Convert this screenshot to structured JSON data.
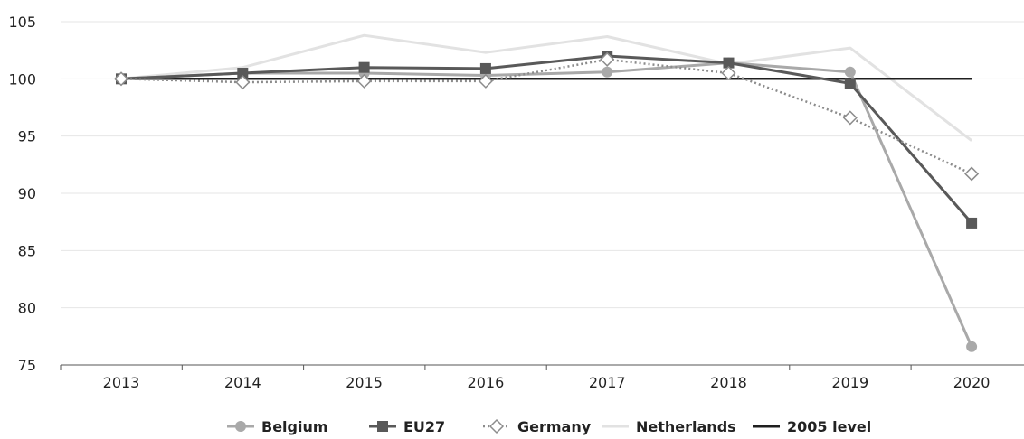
{
  "chart_data": {
    "type": "line",
    "title": "",
    "xlabel": "",
    "ylabel": "",
    "x": [
      "2013",
      "2014",
      "2015",
      "2016",
      "2017",
      "2018",
      "2019",
      "2020"
    ],
    "ylim": [
      75,
      105
    ],
    "yticks": [
      75,
      80,
      85,
      90,
      95,
      100,
      105
    ],
    "grid": "horizontal",
    "legend_position": "bottom",
    "series": [
      {
        "name": "Netherlands",
        "values": [
          100.0,
          101.0,
          103.8,
          102.3,
          103.7,
          101.3,
          102.7,
          94.6
        ],
        "color": "#e2e2e2",
        "marker": "none",
        "dash": "solid"
      },
      {
        "name": "2005 level",
        "values": [
          100,
          100,
          100,
          100,
          100,
          100,
          100,
          100
        ],
        "color": "#1f1f1f",
        "marker": "none",
        "dash": "solid"
      },
      {
        "name": "Belgium",
        "values": [
          100.0,
          100.5,
          100.5,
          100.3,
          100.6,
          101.4,
          100.6,
          76.6
        ],
        "color": "#a9a9a9",
        "marker": "circle",
        "dash": "solid"
      },
      {
        "name": "EU27",
        "values": [
          100.0,
          100.5,
          101.0,
          100.9,
          102.0,
          101.4,
          99.6,
          87.4
        ],
        "color": "#595959",
        "marker": "square",
        "dash": "solid"
      },
      {
        "name": "Germany",
        "values": [
          100.0,
          99.7,
          99.8,
          99.8,
          101.7,
          100.5,
          96.6,
          91.7
        ],
        "color": "#8c8c8c",
        "marker": "diamond-open",
        "dash": "dotted"
      }
    ],
    "legend": [
      "Belgium",
      "EU27",
      "Germany",
      "Netherlands",
      "2005 level"
    ]
  }
}
